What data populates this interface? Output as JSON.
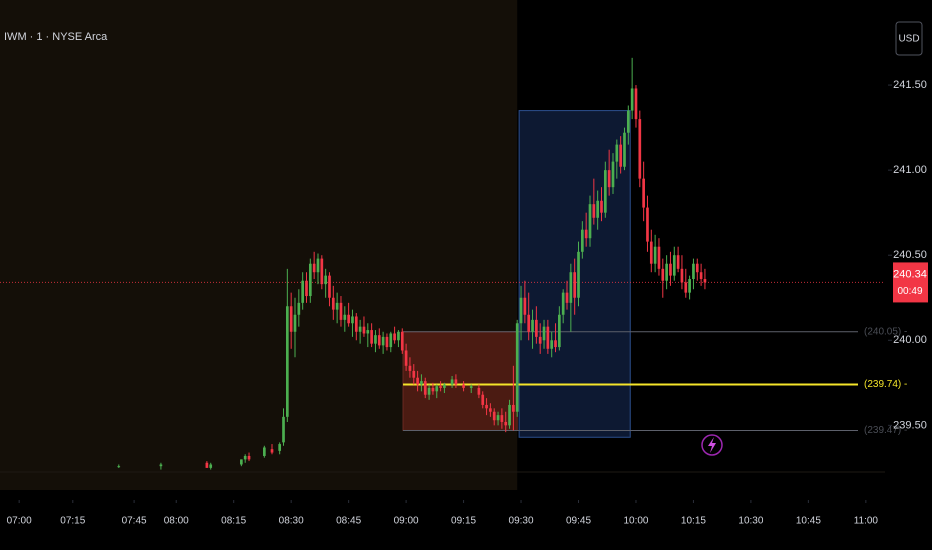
{
  "chart_data": {
    "type": "candlestick",
    "title": "IWM · 1 · NYSE Arca",
    "currency": "USD",
    "up_color": "#4caf50",
    "down_color": "#f23645",
    "xlim": [
      0,
      231
    ],
    "ylim": [
      239.12,
      242.0
    ],
    "regular_session_start": 135,
    "xticks": [
      {
        "value": 5,
        "label": "07:00"
      },
      {
        "value": 19,
        "label": "07:15"
      },
      {
        "value": 35,
        "label": "07:45"
      },
      {
        "value": 46,
        "label": "08:00"
      },
      {
        "value": 61,
        "label": "08:15"
      },
      {
        "value": 76,
        "label": "08:30"
      },
      {
        "value": 91,
        "label": "08:45"
      },
      {
        "value": 106,
        "label": "09:00"
      },
      {
        "value": 121,
        "label": "09:15"
      },
      {
        "value": 136,
        "label": "09:30"
      },
      {
        "value": 151,
        "label": "09:45"
      },
      {
        "value": 166,
        "label": "10:00"
      },
      {
        "value": 181,
        "label": "10:15"
      },
      {
        "value": 196,
        "label": "10:30"
      },
      {
        "value": 211,
        "label": "10:45"
      },
      {
        "value": 226,
        "label": "11:00"
      }
    ],
    "yticks": [
      {
        "value": 239.5,
        "label": "239.50"
      },
      {
        "value": 240.0,
        "label": "240.00"
      },
      {
        "value": 240.5,
        "label": "240.50"
      },
      {
        "value": 241.0,
        "label": "241.00"
      },
      {
        "value": 241.5,
        "label": "241.50"
      }
    ],
    "last_price": {
      "value": 240.34,
      "label": "240.34",
      "countdown": "00:49",
      "color": "#f23645"
    },
    "levels": [
      {
        "value": 240.05,
        "label": "(240.05) -",
        "color": "#5d606b"
      },
      {
        "value": 239.74,
        "label": "(239.74) -",
        "color": "#f5e52a"
      },
      {
        "value": 239.47,
        "label": "(239.47) -",
        "color": "#5d606b"
      }
    ],
    "boxes": [
      {
        "x": [
          105.2,
          135
        ],
        "y": [
          239.47,
          240.05
        ],
        "fill": "rgba(120,38,28,0.55)",
        "stroke": "#6b2a22"
      },
      {
        "x": [
          135.5,
          164.5
        ],
        "y": [
          239.43,
          241.35
        ],
        "fill": "rgba(28,55,110,0.45)",
        "stroke": "#2c4f8f"
      }
    ],
    "x": [
      31,
      42,
      54,
      55,
      63,
      64,
      65,
      69,
      71,
      73,
      74,
      75,
      76,
      77,
      78,
      79,
      80,
      81,
      82,
      83,
      84,
      85,
      86,
      87,
      88,
      89,
      90,
      91,
      92,
      93,
      94,
      95,
      96,
      97,
      98,
      99,
      100,
      101,
      102,
      103,
      104,
      105,
      106,
      107,
      108,
      109,
      110,
      111,
      112,
      113,
      114,
      115,
      116,
      118,
      119,
      121,
      123,
      125,
      126,
      127,
      128,
      129,
      130,
      131,
      132,
      133,
      134,
      135,
      136,
      137,
      138,
      139,
      140,
      141,
      142,
      143,
      144,
      145,
      146,
      147,
      148,
      149,
      150,
      151,
      152,
      153,
      154,
      155,
      156,
      157,
      158,
      159,
      160,
      161,
      162,
      163,
      164,
      165,
      166,
      167,
      168,
      169,
      170,
      171,
      172,
      173,
      174,
      175,
      176,
      177,
      178,
      179,
      180,
      181,
      182,
      183,
      184
    ],
    "open": [
      239.26,
      239.26,
      239.28,
      239.25,
      239.27,
      239.3,
      239.32,
      239.32,
      239.36,
      239.35,
      239.4,
      239.55,
      240.2,
      240.05,
      240.15,
      240.22,
      240.35,
      240.26,
      240.45,
      240.4,
      240.48,
      240.33,
      240.38,
      240.25,
      240.18,
      240.22,
      240.12,
      240.15,
      240.1,
      240.14,
      240.05,
      240.08,
      240.04,
      240.06,
      239.98,
      240.03,
      239.97,
      240.02,
      239.96,
      240.04,
      240.0,
      240.05,
      239.94,
      239.85,
      239.82,
      239.78,
      239.74,
      239.76,
      239.68,
      239.72,
      239.7,
      239.73,
      239.72,
      239.74,
      239.77,
      239.74,
      239.72,
      239.72,
      239.68,
      239.62,
      239.6,
      239.58,
      239.53,
      239.56,
      239.52,
      239.5,
      239.62,
      239.58,
      240.1,
      240.25,
      240.15,
      240.05,
      240.12,
      240.02,
      240.0,
      240.08,
      239.95,
      240.0,
      239.96,
      240.15,
      240.28,
      240.22,
      240.4,
      240.25,
      240.52,
      240.65,
      240.6,
      240.8,
      240.72,
      240.82,
      240.75,
      241.0,
      240.9,
      241.05,
      241.15,
      241.02,
      241.22,
      241.35,
      241.48,
      241.3,
      240.95,
      240.78,
      240.58,
      240.45,
      240.55,
      240.42,
      240.35,
      240.45,
      240.38,
      240.5,
      240.42,
      240.34,
      240.28,
      240.36,
      240.45,
      240.4,
      240.36
    ],
    "high": [
      239.27,
      239.28,
      239.29,
      239.28,
      239.3,
      239.33,
      239.34,
      239.38,
      239.39,
      239.4,
      239.6,
      240.42,
      240.28,
      240.25,
      240.3,
      240.4,
      240.4,
      240.48,
      240.52,
      240.51,
      240.5,
      240.42,
      240.4,
      240.32,
      240.28,
      240.26,
      240.2,
      240.22,
      240.18,
      240.16,
      240.12,
      240.14,
      240.1,
      240.1,
      240.06,
      240.07,
      240.05,
      240.04,
      240.05,
      240.08,
      240.06,
      240.07,
      239.98,
      239.9,
      239.86,
      239.82,
      239.8,
      239.78,
      239.74,
      239.75,
      239.74,
      239.76,
      239.75,
      239.79,
      239.8,
      239.76,
      239.74,
      239.74,
      239.7,
      239.66,
      239.63,
      239.6,
      239.58,
      239.6,
      239.58,
      239.65,
      239.85,
      240.12,
      240.32,
      240.35,
      240.28,
      240.18,
      240.2,
      240.1,
      240.12,
      240.12,
      240.05,
      240.1,
      240.2,
      240.3,
      240.35,
      240.45,
      240.48,
      240.58,
      240.7,
      240.75,
      240.85,
      240.95,
      240.88,
      240.9,
      241.05,
      241.12,
      241.1,
      241.18,
      241.2,
      241.25,
      241.38,
      241.66,
      241.5,
      241.35,
      241.05,
      240.85,
      240.65,
      240.62,
      240.6,
      240.48,
      240.5,
      240.52,
      240.55,
      240.55,
      240.5,
      240.42,
      240.38,
      240.48,
      240.48,
      240.45,
      240.42
    ],
    "low": [
      239.25,
      239.24,
      239.25,
      239.24,
      239.26,
      239.28,
      239.29,
      239.31,
      239.33,
      239.33,
      239.38,
      239.52,
      239.95,
      239.9,
      240.08,
      240.18,
      240.22,
      240.22,
      240.36,
      240.33,
      240.3,
      240.25,
      240.2,
      240.12,
      240.1,
      240.08,
      240.05,
      240.08,
      240.02,
      240.0,
      239.98,
      240.02,
      239.96,
      239.96,
      239.93,
      239.95,
      239.92,
      239.94,
      239.93,
      239.98,
      239.96,
      239.92,
      239.82,
      239.78,
      239.74,
      239.7,
      239.7,
      239.66,
      239.65,
      239.68,
      239.66,
      239.7,
      239.69,
      239.72,
      239.72,
      239.7,
      239.69,
      239.66,
      239.6,
      239.56,
      239.55,
      239.5,
      239.5,
      239.48,
      239.46,
      239.48,
      239.47,
      239.55,
      240.0,
      240.1,
      240.0,
      239.95,
      239.98,
      239.92,
      239.95,
      239.92,
      239.9,
      239.93,
      239.94,
      240.1,
      240.18,
      240.05,
      240.15,
      240.2,
      240.48,
      240.55,
      240.55,
      240.68,
      240.65,
      240.7,
      240.72,
      240.85,
      240.86,
      240.95,
      240.98,
      241.0,
      241.15,
      241.3,
      241.25,
      240.9,
      240.7,
      240.52,
      240.4,
      240.4,
      240.38,
      240.25,
      240.3,
      240.32,
      240.35,
      240.4,
      240.3,
      240.25,
      240.24,
      240.3,
      240.35,
      240.32,
      240.3
    ],
    "close": [
      239.26,
      239.27,
      239.25,
      239.27,
      239.3,
      239.32,
      239.3,
      239.37,
      239.34,
      239.39,
      239.55,
      240.2,
      240.05,
      240.15,
      240.22,
      240.35,
      240.26,
      240.45,
      240.4,
      240.48,
      240.33,
      240.38,
      240.25,
      240.18,
      240.22,
      240.12,
      240.15,
      240.1,
      240.14,
      240.05,
      240.08,
      240.04,
      240.06,
      239.98,
      240.03,
      239.97,
      240.02,
      239.96,
      240.04,
      240.0,
      240.05,
      239.94,
      239.85,
      239.82,
      239.78,
      239.74,
      239.76,
      239.68,
      239.72,
      239.7,
      239.73,
      239.72,
      239.74,
      239.77,
      239.74,
      239.72,
      239.73,
      239.68,
      239.62,
      239.6,
      239.58,
      239.53,
      239.56,
      239.52,
      239.5,
      239.62,
      239.58,
      240.1,
      240.25,
      240.15,
      240.05,
      240.12,
      240.02,
      239.98,
      240.08,
      239.95,
      240.0,
      239.96,
      240.15,
      240.28,
      240.22,
      240.4,
      240.25,
      240.52,
      240.65,
      240.6,
      240.8,
      240.72,
      240.82,
      240.75,
      241.0,
      240.9,
      241.05,
      241.15,
      241.02,
      241.22,
      241.35,
      241.48,
      241.3,
      240.95,
      240.78,
      240.58,
      240.45,
      240.55,
      240.42,
      240.35,
      240.45,
      240.38,
      240.5,
      240.42,
      240.34,
      240.28,
      240.36,
      240.45,
      240.4,
      240.36,
      240.34
    ]
  }
}
